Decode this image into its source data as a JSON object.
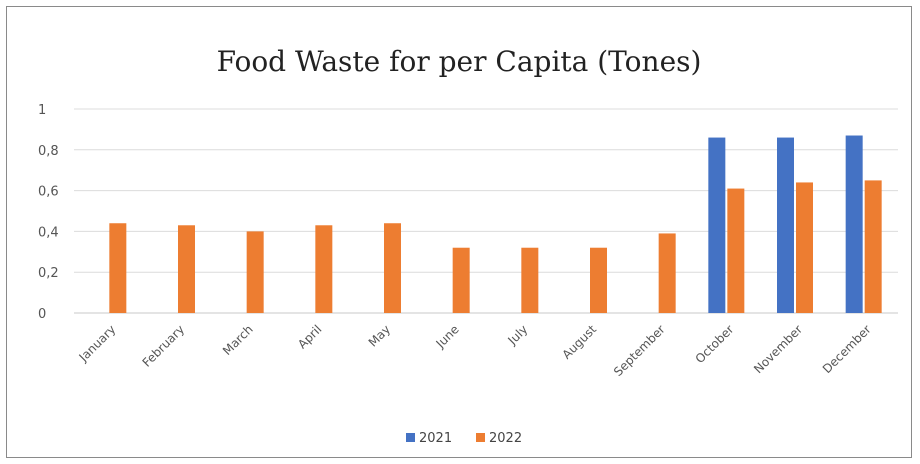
{
  "chart_data": {
    "type": "bar",
    "title": "Food Waste for per Capita (Tones)",
    "xlabel": "",
    "ylabel": "",
    "categories": [
      "January",
      "February",
      "March",
      "April",
      "May",
      "June",
      "July",
      "August",
      "September",
      "October",
      "November",
      "December"
    ],
    "series": [
      {
        "name": "2021",
        "color": "#4472c4",
        "values": [
          0,
          0,
          0,
          0,
          0,
          0,
          0,
          0,
          0,
          0.86,
          0.86,
          0.87
        ]
      },
      {
        "name": "2022",
        "color": "#ed7d31",
        "values": [
          0.44,
          0.43,
          0.4,
          0.43,
          0.44,
          0.32,
          0.32,
          0.32,
          0.39,
          0.61,
          0.64,
          0.65
        ]
      }
    ],
    "ylim": [
      0,
      1
    ],
    "yticks": [
      0,
      0.2,
      0.4,
      0.6,
      0.8,
      1
    ],
    "ytick_labels": [
      "0",
      "0,2",
      "0,4",
      "0,6",
      "0,8",
      "1"
    ],
    "grid": true,
    "legend_position": "bottom"
  }
}
